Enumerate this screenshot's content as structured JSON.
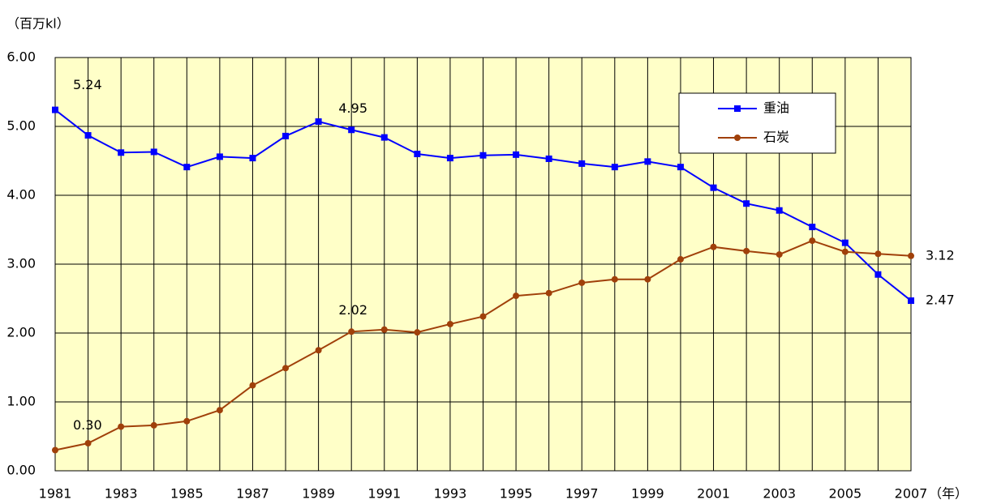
{
  "chart_data": {
    "type": "line",
    "y_label": "（百万kl）",
    "x_label": "（年）",
    "categories": [
      "1981",
      null,
      "1983",
      null,
      "1985",
      null,
      "1987",
      null,
      "1989",
      null,
      "1991",
      null,
      "1993",
      null,
      "1995",
      null,
      "1997",
      null,
      "1999",
      null,
      "2001",
      null,
      "2003",
      null,
      "2005",
      null,
      "2007"
    ],
    "ylim": [
      0,
      6
    ],
    "yticks": [
      {
        "value": 0,
        "label": "0.00"
      },
      {
        "value": 1,
        "label": "1.00"
      },
      {
        "value": 2,
        "label": "2.00"
      },
      {
        "value": 3,
        "label": "3.00"
      },
      {
        "value": 4,
        "label": "4.00"
      },
      {
        "value": 5,
        "label": "5.00"
      },
      {
        "value": 6,
        "label": "6.00"
      }
    ],
    "grid": true,
    "legend": "upper right",
    "background": "#ffffc8",
    "series": [
      {
        "name": "重油",
        "color": "#0000ff",
        "marker": "square",
        "values": [
          5.24,
          4.87,
          4.62,
          4.63,
          4.41,
          4.56,
          4.54,
          4.86,
          5.07,
          4.95,
          4.84,
          4.6,
          4.54,
          4.58,
          4.59,
          4.53,
          4.46,
          4.41,
          4.49,
          4.41,
          4.11,
          3.88,
          3.78,
          3.54,
          3.31,
          2.85,
          2.47
        ],
        "value_labels": [
          "5.24",
          null,
          null,
          null,
          null,
          null,
          null,
          null,
          null,
          "4.95",
          null,
          null,
          null,
          null,
          null,
          null,
          null,
          null,
          null,
          null,
          null,
          null,
          null,
          null,
          null,
          null,
          "2.47"
        ]
      },
      {
        "name": "石炭",
        "color": "#a0400a",
        "marker": "circle",
        "values": [
          0.3,
          0.4,
          0.64,
          0.66,
          0.72,
          0.88,
          1.24,
          1.49,
          1.75,
          2.02,
          2.05,
          2.01,
          2.13,
          2.24,
          2.54,
          2.58,
          2.73,
          2.78,
          2.78,
          3.07,
          3.25,
          3.19,
          3.14,
          3.34,
          3.18,
          3.15,
          3.12
        ],
        "value_labels": [
          "0.30",
          null,
          null,
          null,
          null,
          null,
          null,
          null,
          null,
          "2.02",
          null,
          null,
          null,
          null,
          null,
          null,
          null,
          null,
          null,
          null,
          null,
          null,
          null,
          null,
          null,
          null,
          "3.12"
        ]
      }
    ]
  }
}
